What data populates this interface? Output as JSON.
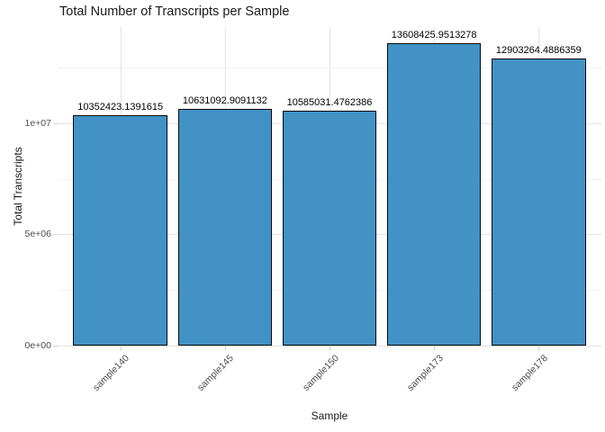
{
  "title": "Total Number of Transcripts per Sample",
  "axes": {
    "xlabel": "Sample",
    "ylabel": "Total Transcripts"
  },
  "chart_data": {
    "type": "bar",
    "title": "Total Number of Transcripts per Sample",
    "xlabel": "Sample",
    "ylabel": "Total Transcripts",
    "categories": [
      "sample140",
      "sample145",
      "sample150",
      "sample173",
      "sample178"
    ],
    "values": [
      10352423.1391615,
      10631092.9091132,
      10585031.4762386,
      13608425.9513278,
      12903264.4886359
    ],
    "bar_labels": [
      "10352423.1391615",
      "10631092.9091132",
      "10585031.4762386",
      "13608425.9513278",
      "12903264.4886359"
    ],
    "ylim": [
      0,
      14330000
    ],
    "yticks": [
      {
        "value": 0,
        "label": "0e+00"
      },
      {
        "value": 5000000,
        "label": "5e+06"
      },
      {
        "value": 10000000,
        "label": "1e+07"
      }
    ],
    "yticks_minor": [
      2500000,
      7500000,
      12500000
    ],
    "grid": true,
    "legend": false,
    "colors": {
      "bar_fill": "#4292c6",
      "bar_stroke": "#0a0a0a",
      "grid_major": "#e3e3e3",
      "grid_minor": "#f1f1f1",
      "tick_text": "#4d4d4d",
      "title_text": "#1a1a1a"
    }
  }
}
